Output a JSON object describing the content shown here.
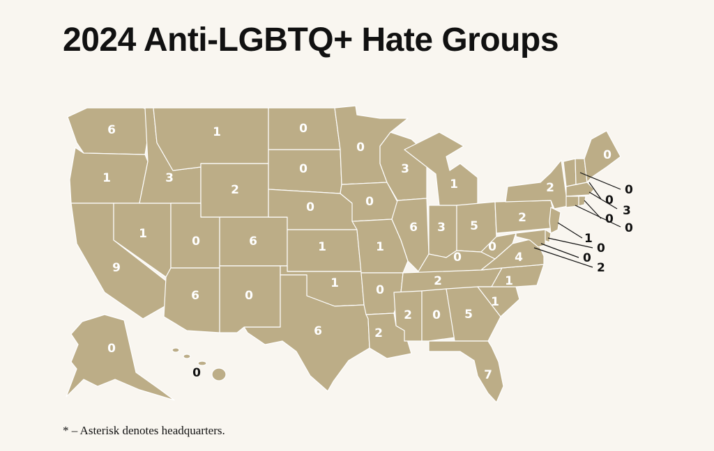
{
  "title": "2024 Anti-LGBTQ+ Hate Groups",
  "footnote": "* – Asterisk denotes headquarters.",
  "colors": {
    "background": "#f9f6f0",
    "state_fill": "#bcad87",
    "border": "#ffffff",
    "text": "#111111"
  },
  "states": {
    "WA": "6",
    "OR": "1",
    "CA": "9",
    "NV": "1",
    "ID": "3",
    "MT": "1",
    "WY": "2",
    "UT": "0",
    "CO": "6",
    "AZ": "6",
    "NM": "0",
    "ND": "0",
    "SD": "0",
    "NE": "0",
    "KS": "1",
    "OK": "1",
    "TX": "6",
    "MN": "0",
    "IA": "0",
    "MO": "1",
    "AR": "0",
    "LA": "2",
    "WI": "3",
    "IL": "6",
    "IN": "3",
    "MI": "1",
    "OH": "5",
    "KY": "0",
    "TN": "2",
    "MS": "2",
    "AL": "0",
    "GA": "5",
    "FL": "7",
    "SC": "1",
    "NC": "1",
    "VA": "4",
    "WV": "0",
    "PA": "2",
    "NY": "2",
    "ME": "0",
    "VT": "0",
    "NH": "0",
    "MA": "3",
    "RI": "0",
    "CT": "0",
    "NJ": "1",
    "DE": "0",
    "MD": "0",
    "DC": "2",
    "AK": "0",
    "HI": "0"
  }
}
